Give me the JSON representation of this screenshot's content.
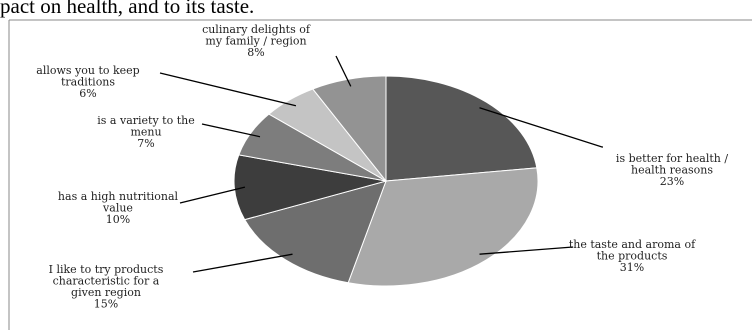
{
  "header": {
    "text": "pact on health, and to its taste."
  },
  "colors": {
    "background": "#ffffff",
    "slice_outline": "#ffffff",
    "label_text": "#222222"
  },
  "chart_data": {
    "type": "pie",
    "title": "",
    "start_angle_deg": 0,
    "direction": "clockwise",
    "slices": [
      {
        "label_lines": [
          "is better for health /",
          "health reasons"
        ],
        "value": 23,
        "percent_label": "23%",
        "color": "#575757"
      },
      {
        "label_lines": [
          "the taste and aroma of",
          "the products"
        ],
        "value": 31,
        "percent_label": "31%",
        "color": "#a9a9a9"
      },
      {
        "label_lines": [
          "I like to try products",
          "characteristic for a",
          "given region"
        ],
        "value": 15,
        "percent_label": "15%",
        "color": "#6e6e6e"
      },
      {
        "label_lines": [
          "has a high nutritional",
          "value"
        ],
        "value": 10,
        "percent_label": "10%",
        "color": "#3d3d3d"
      },
      {
        "label_lines": [
          "is a variety to the",
          "menu"
        ],
        "value": 7,
        "percent_label": "7%",
        "color": "#7d7d7d"
      },
      {
        "label_lines": [
          "allows you to keep",
          "traditions"
        ],
        "value": 6,
        "percent_label": "6%",
        "color": "#c4c4c4"
      },
      {
        "label_lines": [
          "culinary delights of",
          "my family / region"
        ],
        "value": 8,
        "percent_label": "8%",
        "color": "#939393"
      }
    ]
  }
}
